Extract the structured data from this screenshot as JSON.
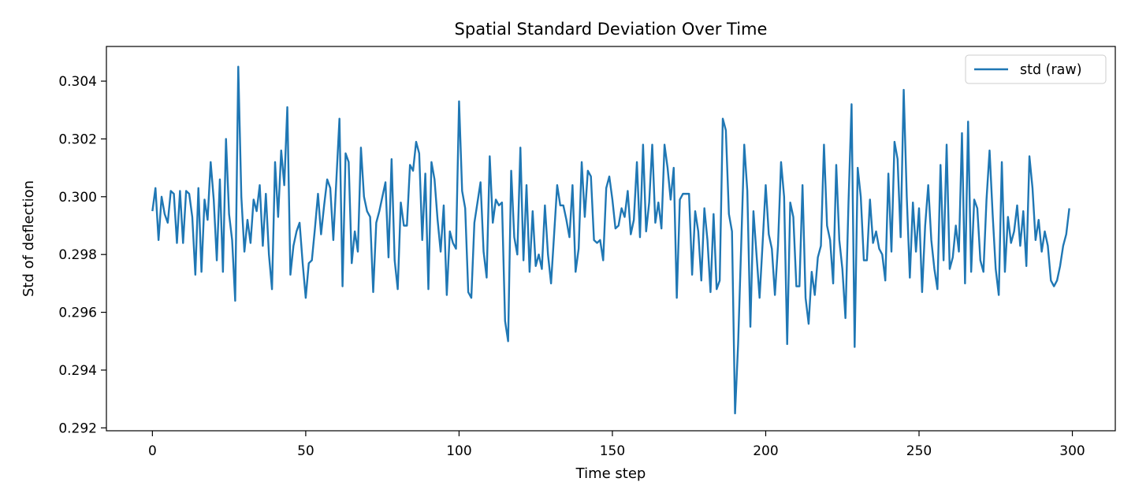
{
  "chart_data": {
    "type": "line",
    "title": "Spatial Standard Deviation Over Time",
    "xlabel": "Time step",
    "ylabel": "Std of deflection",
    "xlim": [
      -15,
      314
    ],
    "ylim": [
      0.2919,
      0.3052
    ],
    "xticks": [
      0,
      50,
      100,
      150,
      200,
      250,
      300
    ],
    "xtick_labels": [
      "0",
      "50",
      "100",
      "150",
      "200",
      "250",
      "300"
    ],
    "yticks": [
      0.292,
      0.294,
      0.296,
      0.298,
      0.3,
      0.302,
      0.304
    ],
    "ytick_labels": [
      "0.292",
      "0.294",
      "0.296",
      "0.298",
      "0.300",
      "0.302",
      "0.304"
    ],
    "grid": false,
    "legend_position": "top-right",
    "series": [
      {
        "name": "std (raw)",
        "color": "#1f77b4",
        "x": [
          0,
          1,
          2,
          3,
          4,
          5,
          6,
          7,
          8,
          9,
          10,
          11,
          12,
          13,
          14,
          15,
          16,
          17,
          18,
          19,
          20,
          21,
          22,
          23,
          24,
          25,
          26,
          27,
          28,
          29,
          30,
          31,
          32,
          33,
          34,
          35,
          36,
          37,
          38,
          39,
          40,
          41,
          42,
          43,
          44,
          45,
          46,
          47,
          48,
          49,
          50,
          51,
          52,
          53,
          54,
          55,
          56,
          57,
          58,
          59,
          60,
          61,
          62,
          63,
          64,
          65,
          66,
          67,
          68,
          69,
          70,
          71,
          72,
          73,
          74,
          75,
          76,
          77,
          78,
          79,
          80,
          81,
          82,
          83,
          84,
          85,
          86,
          87,
          88,
          89,
          90,
          91,
          92,
          93,
          94,
          95,
          96,
          97,
          98,
          99,
          100,
          101,
          102,
          103,
          104,
          105,
          106,
          107,
          108,
          109,
          110,
          111,
          112,
          113,
          114,
          115,
          116,
          117,
          118,
          119,
          120,
          121,
          122,
          123,
          124,
          125,
          126,
          127,
          128,
          129,
          130,
          131,
          132,
          133,
          134,
          135,
          136,
          137,
          138,
          139,
          140,
          141,
          142,
          143,
          144,
          145,
          146,
          147,
          148,
          149,
          150,
          151,
          152,
          153,
          154,
          155,
          156,
          157,
          158,
          159,
          160,
          161,
          162,
          163,
          164,
          165,
          166,
          167,
          168,
          169,
          170,
          171,
          172,
          173,
          174,
          175,
          176,
          177,
          178,
          179,
          180,
          181,
          182,
          183,
          184,
          185,
          186,
          187,
          188,
          189,
          190,
          191,
          192,
          193,
          194,
          195,
          196,
          197,
          198,
          199,
          200,
          201,
          202,
          203,
          204,
          205,
          206,
          207,
          208,
          209,
          210,
          211,
          212,
          213,
          214,
          215,
          216,
          217,
          218,
          219,
          220,
          221,
          222,
          223,
          224,
          225,
          226,
          227,
          228,
          229,
          230,
          231,
          232,
          233,
          234,
          235,
          236,
          237,
          238,
          239,
          240,
          241,
          242,
          243,
          244,
          245,
          246,
          247,
          248,
          249,
          250,
          251,
          252,
          253,
          254,
          255,
          256,
          257,
          258,
          259,
          260,
          261,
          262,
          263,
          264,
          265,
          266,
          267,
          268,
          269,
          270,
          271,
          272,
          273,
          274,
          275,
          276,
          277,
          278,
          279,
          280,
          281,
          282,
          283,
          284,
          285,
          286,
          287,
          288,
          289,
          290,
          291,
          292,
          293,
          294,
          295,
          296,
          297,
          298,
          299
        ],
        "y": [
          0.2995,
          0.3003,
          0.2985,
          0.3,
          0.2994,
          0.2991,
          0.3002,
          0.3001,
          0.2984,
          0.3002,
          0.2984,
          0.3002,
          0.3001,
          0.2993,
          0.2973,
          0.3003,
          0.2974,
          0.2999,
          0.2992,
          0.3012,
          0.2999,
          0.2978,
          0.3006,
          0.2974,
          0.302,
          0.2994,
          0.2985,
          0.2964,
          0.3045,
          0.3,
          0.2981,
          0.2992,
          0.2984,
          0.2999,
          0.2995,
          0.3004,
          0.2983,
          0.3001,
          0.298,
          0.2968,
          0.3012,
          0.2993,
          0.3016,
          0.3004,
          0.3031,
          0.2973,
          0.2983,
          0.2988,
          0.2991,
          0.2977,
          0.2965,
          0.2977,
          0.2978,
          0.2989,
          0.3001,
          0.2987,
          0.2997,
          0.3006,
          0.3003,
          0.2985,
          0.3006,
          0.3027,
          0.2969,
          0.3015,
          0.3012,
          0.2977,
          0.2988,
          0.2981,
          0.3017,
          0.3,
          0.2995,
          0.2993,
          0.2967,
          0.2991,
          0.2995,
          0.3,
          0.3005,
          0.2979,
          0.3013,
          0.2978,
          0.2968,
          0.2998,
          0.299,
          0.299,
          0.3011,
          0.3009,
          0.3019,
          0.3015,
          0.2985,
          0.3008,
          0.2968,
          0.3012,
          0.3006,
          0.2992,
          0.2981,
          0.2997,
          0.2966,
          0.2988,
          0.2984,
          0.2982,
          0.3033,
          0.3002,
          0.2996,
          0.2967,
          0.2965,
          0.2991,
          0.2998,
          0.3005,
          0.2981,
          0.2972,
          0.3014,
          0.2991,
          0.2999,
          0.2997,
          0.2998,
          0.2957,
          0.295,
          0.3009,
          0.2986,
          0.298,
          0.3017,
          0.2978,
          0.3004,
          0.2974,
          0.2995,
          0.2976,
          0.298,
          0.2975,
          0.2997,
          0.298,
          0.297,
          0.2987,
          0.3004,
          0.2997,
          0.2997,
          0.2992,
          0.2986,
          0.3004,
          0.2974,
          0.2982,
          0.3012,
          0.2993,
          0.3009,
          0.3007,
          0.2985,
          0.2984,
          0.2985,
          0.2978,
          0.3003,
          0.3007,
          0.2999,
          0.2989,
          0.299,
          0.2996,
          0.2993,
          0.3002,
          0.2987,
          0.2992,
          0.3012,
          0.2986,
          0.3018,
          0.2988,
          0.2998,
          0.3018,
          0.2991,
          0.2998,
          0.2989,
          0.3018,
          0.301,
          0.2999,
          0.301,
          0.2965,
          0.2999,
          0.3001,
          0.3001,
          0.3001,
          0.2973,
          0.2995,
          0.2988,
          0.2971,
          0.2996,
          0.2985,
          0.2967,
          0.2994,
          0.2968,
          0.2971,
          0.3027,
          0.3023,
          0.2994,
          0.2988,
          0.2925,
          0.2949,
          0.2983,
          0.3018,
          0.3002,
          0.2955,
          0.2995,
          0.298,
          0.2965,
          0.2984,
          0.3004,
          0.2987,
          0.2982,
          0.2966,
          0.2983,
          0.3012,
          0.3,
          0.2949,
          0.2998,
          0.2993,
          0.2969,
          0.2969,
          0.3004,
          0.2965,
          0.2956,
          0.2974,
          0.2966,
          0.2979,
          0.2983,
          0.3018,
          0.299,
          0.2985,
          0.297,
          0.3011,
          0.2985,
          0.2975,
          0.2958,
          0.2998,
          0.3032,
          0.2948,
          0.301,
          0.3,
          0.2978,
          0.2978,
          0.2999,
          0.2984,
          0.2988,
          0.2982,
          0.298,
          0.2971,
          0.3008,
          0.2981,
          0.3019,
          0.3013,
          0.2986,
          0.3037,
          0.3,
          0.2972,
          0.2998,
          0.2981,
          0.2996,
          0.2967,
          0.299,
          0.3004,
          0.2985,
          0.2975,
          0.2968,
          0.3011,
          0.2978,
          0.3018,
          0.2975,
          0.2979,
          0.299,
          0.2981,
          0.3022,
          0.297,
          0.3026,
          0.2974,
          0.2999,
          0.2996,
          0.2978,
          0.2974,
          0.2999,
          0.3016,
          0.2994,
          0.2975,
          0.2966,
          0.3012,
          0.2974,
          0.2993,
          0.2984,
          0.2988,
          0.2997,
          0.2983,
          0.2995,
          0.2976,
          0.3014,
          0.3003,
          0.2985,
          0.2992,
          0.2981,
          0.2988,
          0.2983,
          0.2971,
          0.2969,
          0.2971,
          0.2976,
          0.2983,
          0.2987,
          0.2996
        ]
      }
    ]
  }
}
